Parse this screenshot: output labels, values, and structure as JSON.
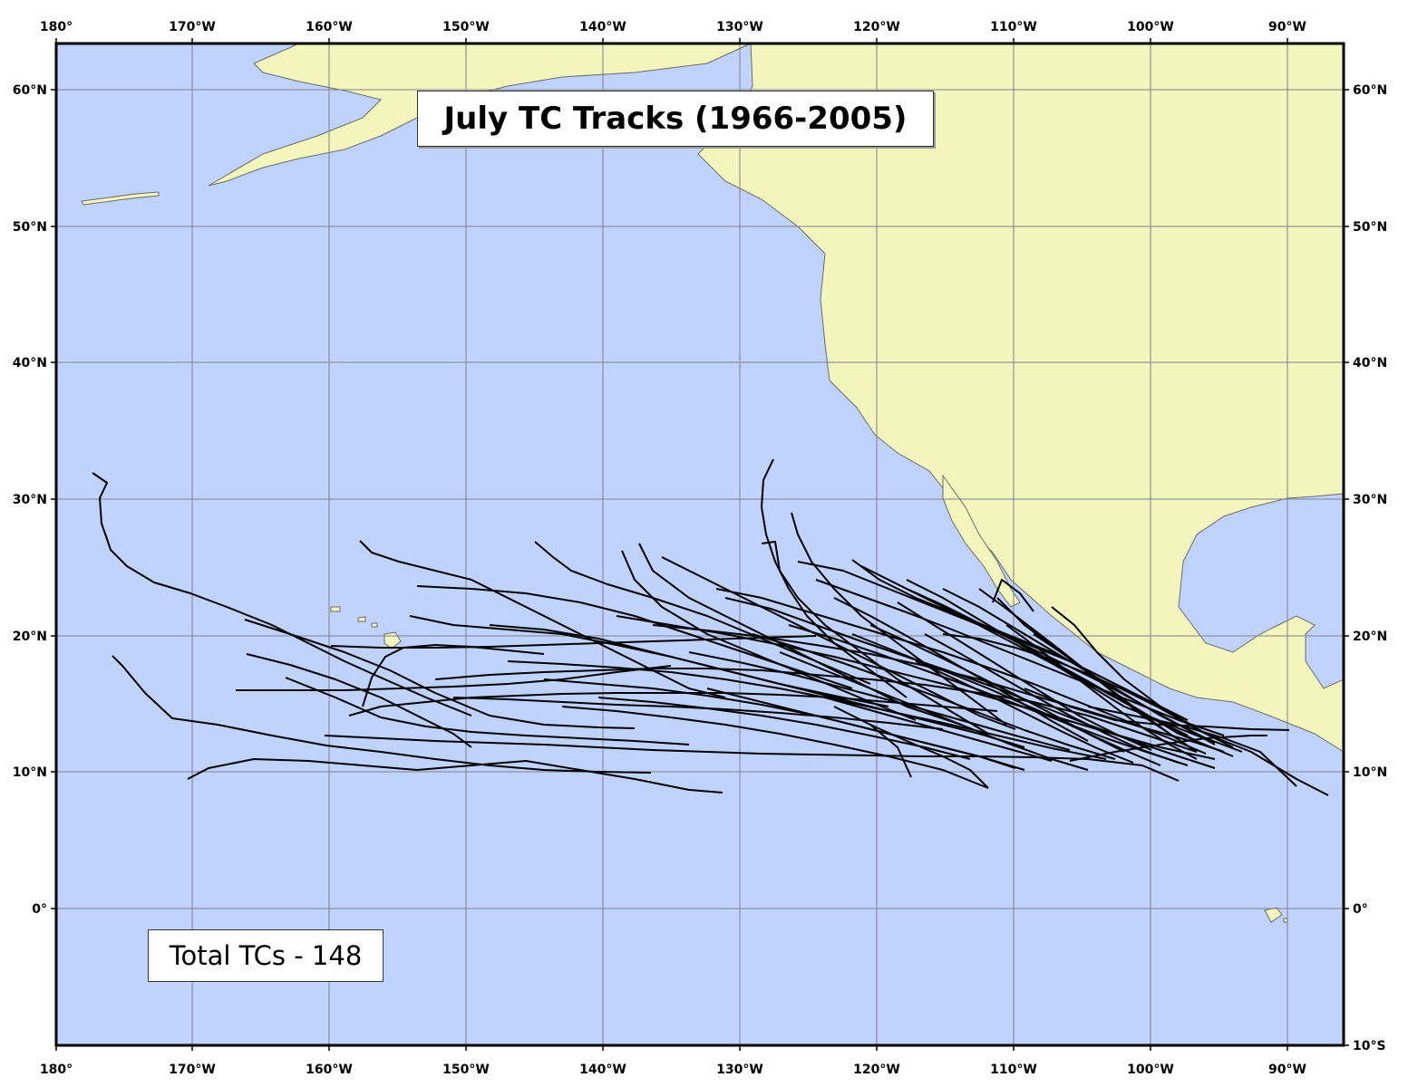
{
  "title": "July TC Tracks (1966-2005)",
  "total_label": "Total TCs - 148",
  "colors": {
    "ocean": "#bfd3fe",
    "land": "#f2f6bc",
    "grid": "#7f7f8a",
    "track": "#000000",
    "frame": "#000000"
  },
  "axes": {
    "lon_ticks": [
      "180°",
      "170°W",
      "160°W",
      "150°W",
      "140°W",
      "130°W",
      "120°W",
      "110°W",
      "100°W",
      "90°W"
    ],
    "lat_left_ticks": [
      "60°N",
      "50°N",
      "40°N",
      "30°N",
      "20°N",
      "10°N",
      "0°"
    ],
    "lat_right_ticks": [
      "60°N",
      "50°N",
      "40°N",
      "30°N",
      "20°N",
      "10°N",
      "0°",
      "10°S"
    ]
  }
}
